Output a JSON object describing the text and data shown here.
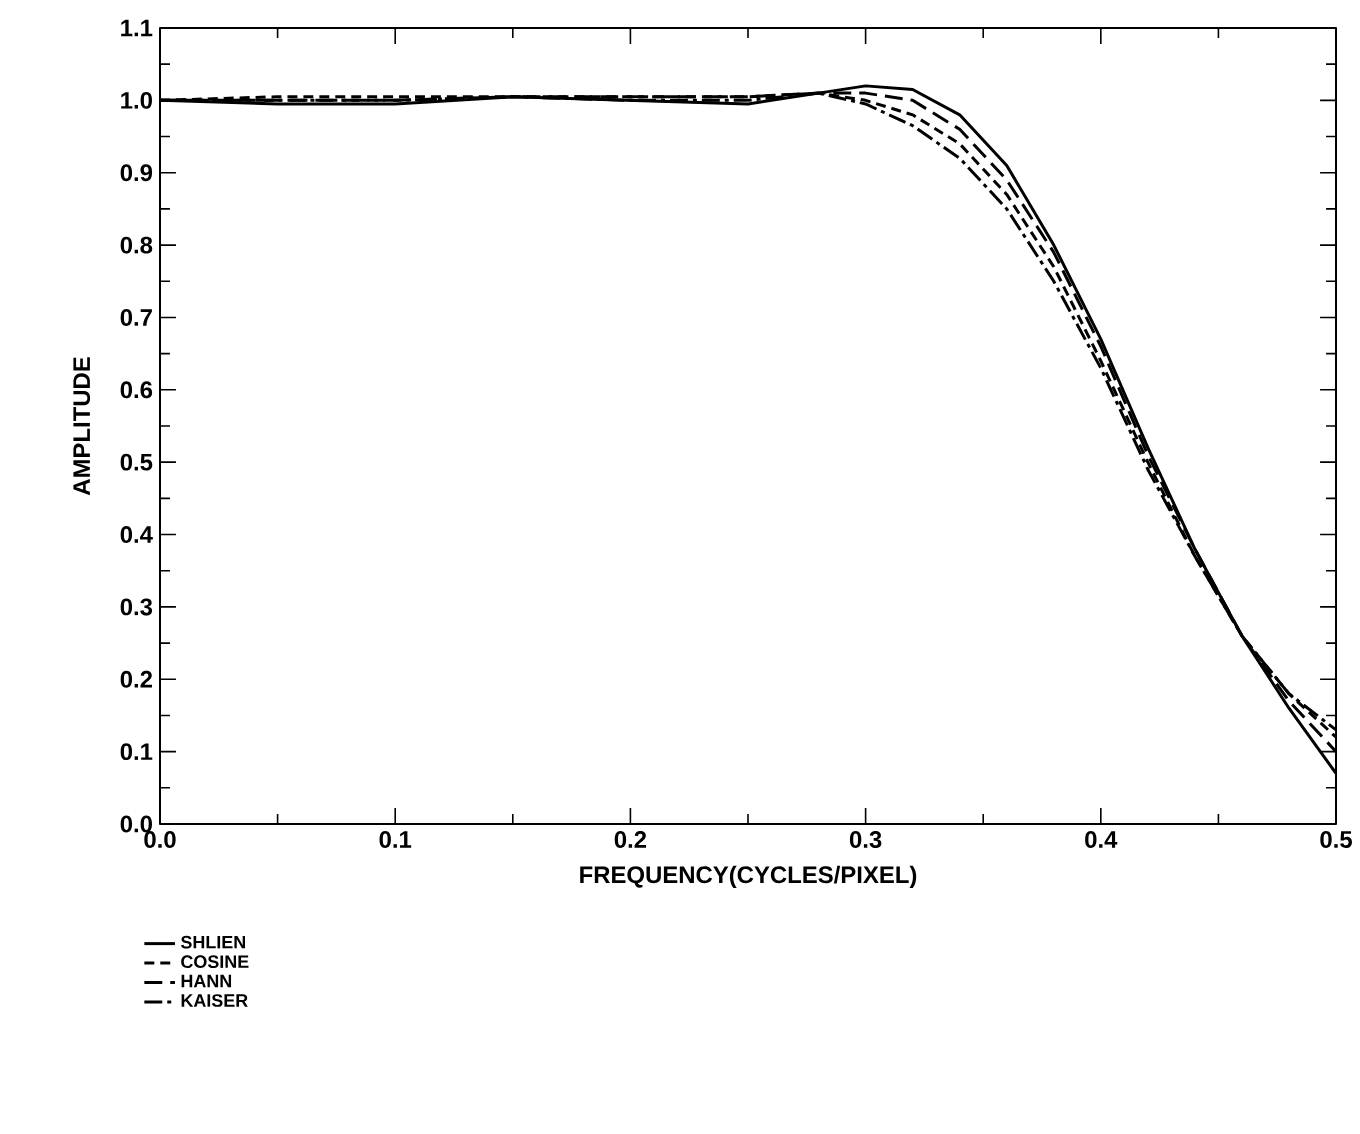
{
  "chart_data": {
    "type": "line",
    "xlabel": "FREQUENCY(CYCLES/PIXEL)",
    "ylabel": "AMPLITUDE",
    "x": [
      0,
      0.05,
      0.1,
      0.15,
      0.2,
      0.25,
      0.28,
      0.3,
      0.32,
      0.34,
      0.36,
      0.38,
      0.4,
      0.42,
      0.44,
      0.46,
      0.48,
      0.5
    ],
    "series": [
      {
        "name": "SHLIEN",
        "color": "#000000",
        "line_style": "solid",
        "values": [
          1.0,
          0.995,
          0.995,
          1.005,
          1.0,
          0.995,
          1.01,
          1.02,
          1.015,
          0.98,
          0.91,
          0.8,
          0.67,
          0.52,
          0.38,
          0.26,
          0.16,
          0.07
        ]
      },
      {
        "name": "COSINE",
        "color": "#000000",
        "line_style": "dashed",
        "values": [
          1.0,
          1.005,
          1.005,
          1.005,
          1.005,
          1.005,
          1.01,
          1.0,
          0.98,
          0.94,
          0.87,
          0.77,
          0.64,
          0.5,
          0.37,
          0.26,
          0.18,
          0.12
        ]
      },
      {
        "name": "HANN",
        "color": "#000000",
        "line_style": "longdashed",
        "values": [
          1.0,
          1.0,
          1.0,
          1.005,
          1.005,
          1.005,
          1.01,
          1.01,
          1.0,
          0.96,
          0.89,
          0.79,
          0.66,
          0.51,
          0.38,
          0.26,
          0.17,
          0.1
        ]
      },
      {
        "name": "KAISER",
        "color": "#000000",
        "line_style": "dashdotted",
        "values": [
          1.0,
          1.0,
          1.0,
          1.005,
          1.0,
          1.0,
          1.01,
          0.995,
          0.965,
          0.92,
          0.85,
          0.75,
          0.63,
          0.49,
          0.37,
          0.26,
          0.18,
          0.13
        ]
      }
    ],
    "xlim": [
      0,
      0.5
    ],
    "ylim": [
      0,
      1.1
    ],
    "xticks": [
      {
        "value": 0,
        "label": "0.0"
      },
      0.1,
      0.2,
      0.3,
      0.4,
      0.5
    ],
    "yticks": [
      {
        "value": 0,
        "label": "0.0"
      },
      0.1,
      0.2,
      0.3,
      0.4,
      0.5,
      0.6,
      0.7,
      0.8,
      0.9,
      {
        "value": 1,
        "label": "1.0"
      },
      1.1
    ],
    "grid": false,
    "legend": "bottom left",
    "marker": "none"
  }
}
